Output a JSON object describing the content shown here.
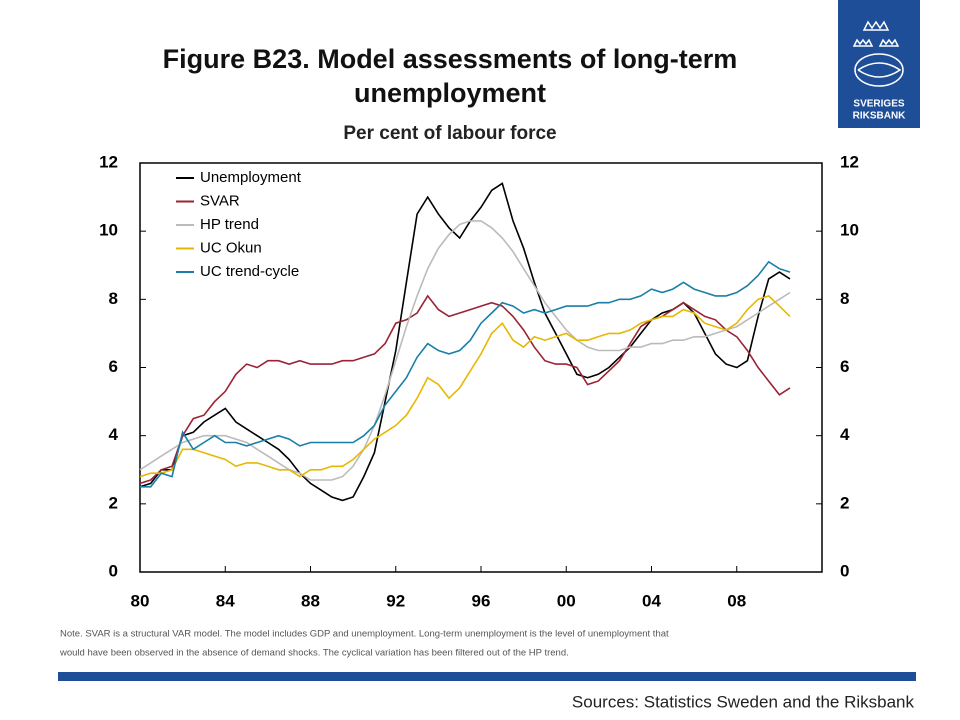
{
  "chart_data": {
    "type": "line",
    "title": "Figure B23. Model assessments of long-term unemployment",
    "subtitle": "Per cent of labour force",
    "x": [
      1980,
      1980.5,
      1981,
      1981.5,
      1982,
      1982.5,
      1983,
      1983.5,
      1984,
      1984.5,
      1985,
      1985.5,
      1986,
      1986.5,
      1987,
      1987.5,
      1988,
      1988.5,
      1989,
      1989.5,
      1990,
      1990.5,
      1991,
      1991.5,
      1992,
      1992.5,
      1993,
      1993.5,
      1994,
      1994.5,
      1995,
      1995.5,
      1996,
      1996.5,
      1997,
      1997.5,
      1998,
      1998.5,
      1999,
      1999.5,
      2000,
      2000.5,
      2001,
      2001.5,
      2002,
      2002.5,
      2003,
      2003.5,
      2004,
      2004.5,
      2005,
      2005.5,
      2006,
      2006.5,
      2007,
      2007.5,
      2008,
      2008.5,
      2009,
      2009.5,
      2010,
      2010.5
    ],
    "series": [
      {
        "name": "Unemployment",
        "color": "#000000",
        "values": [
          2.5,
          2.6,
          3.0,
          3.0,
          4.0,
          4.1,
          4.4,
          4.6,
          4.8,
          4.4,
          4.2,
          4.0,
          3.8,
          3.6,
          3.3,
          2.9,
          2.6,
          2.4,
          2.2,
          2.1,
          2.2,
          2.8,
          3.5,
          5.0,
          6.5,
          8.5,
          10.5,
          11.0,
          10.5,
          10.1,
          9.8,
          10.3,
          10.7,
          11.2,
          11.4,
          10.3,
          9.5,
          8.5,
          7.6,
          7.0,
          6.4,
          5.8,
          5.7,
          5.8,
          6.0,
          6.3,
          6.6,
          7.0,
          7.4,
          7.6,
          7.7,
          7.9,
          7.6,
          7.0,
          6.4,
          6.1,
          6.0,
          6.2,
          7.5,
          8.6,
          8.8,
          8.6
        ]
      },
      {
        "name": "SVAR",
        "color": "#9b2335",
        "values": [
          2.6,
          2.7,
          3.0,
          3.1,
          4.0,
          4.5,
          4.6,
          5.0,
          5.3,
          5.8,
          6.1,
          6.0,
          6.2,
          6.2,
          6.1,
          6.2,
          6.1,
          6.1,
          6.1,
          6.2,
          6.2,
          6.3,
          6.4,
          6.7,
          7.3,
          7.4,
          7.6,
          8.1,
          7.7,
          7.5,
          7.6,
          7.7,
          7.8,
          7.9,
          7.8,
          7.5,
          7.1,
          6.6,
          6.2,
          6.1,
          6.1,
          6.0,
          5.5,
          5.6,
          5.9,
          6.2,
          6.7,
          7.2,
          7.4,
          7.5,
          7.7,
          7.9,
          7.7,
          7.5,
          7.4,
          7.1,
          6.9,
          6.5,
          6.0,
          5.6,
          5.2,
          5.4
        ]
      },
      {
        "name": "HP trend",
        "color": "#bbbbbb",
        "values": [
          3.0,
          3.2,
          3.4,
          3.6,
          3.8,
          3.9,
          4.0,
          4.0,
          4.0,
          3.9,
          3.8,
          3.6,
          3.4,
          3.2,
          3.0,
          2.9,
          2.7,
          2.7,
          2.7,
          2.8,
          3.1,
          3.6,
          4.3,
          5.2,
          6.2,
          7.2,
          8.1,
          8.9,
          9.5,
          9.9,
          10.2,
          10.3,
          10.3,
          10.1,
          9.8,
          9.4,
          8.9,
          8.4,
          7.9,
          7.5,
          7.1,
          6.8,
          6.6,
          6.5,
          6.5,
          6.5,
          6.6,
          6.6,
          6.7,
          6.7,
          6.8,
          6.8,
          6.9,
          6.9,
          7.0,
          7.1,
          7.2,
          7.4,
          7.6,
          7.8,
          8.0,
          8.2
        ]
      },
      {
        "name": "UC Okun",
        "color": "#e6b800",
        "values": [
          2.8,
          2.9,
          2.9,
          3.0,
          3.6,
          3.6,
          3.5,
          3.4,
          3.3,
          3.1,
          3.2,
          3.2,
          3.1,
          3.0,
          3.0,
          2.8,
          3.0,
          3.0,
          3.1,
          3.1,
          3.3,
          3.6,
          3.9,
          4.1,
          4.3,
          4.6,
          5.1,
          5.7,
          5.5,
          5.1,
          5.4,
          5.9,
          6.4,
          7.0,
          7.3,
          6.8,
          6.6,
          6.9,
          6.8,
          6.9,
          7.0,
          6.8,
          6.8,
          6.9,
          7.0,
          7.0,
          7.1,
          7.3,
          7.4,
          7.5,
          7.5,
          7.7,
          7.6,
          7.3,
          7.2,
          7.1,
          7.3,
          7.7,
          8.0,
          8.1,
          7.8,
          7.5
        ]
      },
      {
        "name": "UC trend-cycle",
        "color": "#1a7fa8",
        "values": [
          2.5,
          2.5,
          2.9,
          2.8,
          4.1,
          3.6,
          3.8,
          4.0,
          3.8,
          3.8,
          3.7,
          3.8,
          3.9,
          4.0,
          3.9,
          3.7,
          3.8,
          3.8,
          3.8,
          3.8,
          3.8,
          4.0,
          4.3,
          4.9,
          5.3,
          5.7,
          6.3,
          6.7,
          6.5,
          6.4,
          6.5,
          6.8,
          7.3,
          7.6,
          7.9,
          7.8,
          7.6,
          7.7,
          7.6,
          7.7,
          7.8,
          7.8,
          7.8,
          7.9,
          7.9,
          8.0,
          8.0,
          8.1,
          8.3,
          8.2,
          8.3,
          8.5,
          8.3,
          8.2,
          8.1,
          8.1,
          8.2,
          8.4,
          8.7,
          9.1,
          8.9,
          8.8
        ]
      }
    ],
    "xlim": [
      1980,
      2012
    ],
    "xticks": [
      {
        "value": 1980,
        "label": "80"
      },
      {
        "value": 1984,
        "label": "84"
      },
      {
        "value": 1988,
        "label": "88"
      },
      {
        "value": 1992,
        "label": "92"
      },
      {
        "value": 1996,
        "label": "96"
      },
      {
        "value": 2000,
        "label": "00"
      },
      {
        "value": 2004,
        "label": "04"
      },
      {
        "value": 2008,
        "label": "08"
      }
    ],
    "ylim": [
      0,
      12
    ],
    "yticks": [
      0,
      2,
      4,
      6,
      8,
      10,
      12
    ],
    "y2lim": [
      0,
      12
    ],
    "y2ticks": [
      0,
      2,
      4,
      6,
      8,
      10,
      12
    ],
    "legend": "upper left",
    "grid": false
  },
  "note": [
    "Note. SVAR is a structural VAR model. The model includes GDP and unemployment. Long-term unemployment is the level of unemployment that",
    "would have been observed in the absence of demand shocks. The cyclical variation has been filtered out of the HP trend."
  ],
  "source": "Sources: Statistics Sweden and the Riksbank",
  "logo": [
    "SVERIGES",
    "RIKSBANK"
  ]
}
